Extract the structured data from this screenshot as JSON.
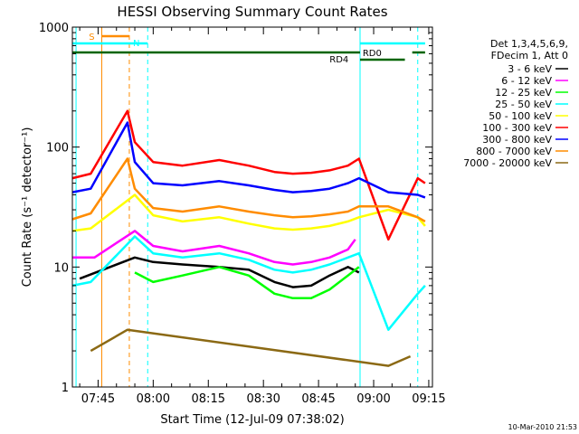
{
  "chart_data": {
    "type": "line",
    "title": "HESSI Observing Summary Count Rates",
    "xlabel": "Start Time (12-Jul-09 07:38:02)",
    "ylabel": "Count Rate (s⁻¹ detector⁻¹)",
    "ylim": [
      1,
      1000
    ],
    "yscale": "log",
    "xlim_minutes_after_0738": [
      0,
      98
    ],
    "x_ticks": [
      "07:45",
      "08:00",
      "08:15",
      "08:30",
      "08:45",
      "09:00",
      "09:15"
    ],
    "y_ticks": [
      "1",
      "10",
      "100",
      "1000"
    ],
    "legend_header": [
      "Det 1,3,4,5,6,9,",
      "FDecim 1, Att 0"
    ],
    "legend_position": "right",
    "timestamp": "10-Mar-2010 21:53",
    "flags": [
      {
        "label": "S",
        "color": "#ff8c00"
      },
      {
        "label": "N",
        "color": "#00ffff"
      },
      {
        "label": "RD0",
        "color": "#00ffff"
      },
      {
        "label": "RD4",
        "color": "#006400"
      }
    ],
    "series": [
      {
        "name": "3 - 6 keV",
        "color": "#000000",
        "points": [
          [
            2,
            8
          ],
          [
            17,
            12
          ],
          [
            22,
            11
          ],
          [
            30,
            10.5
          ],
          [
            40,
            10
          ],
          [
            48,
            9.5
          ],
          [
            55,
            7.5
          ],
          [
            60,
            6.8
          ],
          [
            65,
            7
          ],
          [
            70,
            8.5
          ],
          [
            75,
            10
          ],
          [
            78,
            9
          ]
        ]
      },
      {
        "name": "6 - 12 keV",
        "color": "#ff00ff",
        "points": [
          [
            0,
            12
          ],
          [
            6,
            12
          ],
          [
            17,
            20
          ],
          [
            22,
            15
          ],
          [
            30,
            13.5
          ],
          [
            40,
            15
          ],
          [
            48,
            13
          ],
          [
            55,
            11
          ],
          [
            60,
            10.5
          ],
          [
            65,
            11
          ],
          [
            70,
            12
          ],
          [
            75,
            14
          ],
          [
            77,
            17
          ]
        ]
      },
      {
        "name": "12 - 25 keV",
        "color": "#00ff00",
        "points": [
          [
            17,
            9
          ],
          [
            22,
            7.5
          ],
          [
            30,
            8.5
          ],
          [
            40,
            10
          ],
          [
            48,
            8.5
          ],
          [
            55,
            6
          ],
          [
            60,
            5.5
          ],
          [
            65,
            5.5
          ],
          [
            70,
            6.5
          ],
          [
            75,
            8.5
          ],
          [
            78,
            10
          ]
        ]
      },
      {
        "name": "25 - 50 keV",
        "color": "#00ffff",
        "points": [
          [
            0,
            7
          ],
          [
            5,
            7.5
          ],
          [
            17,
            18
          ],
          [
            22,
            13
          ],
          [
            30,
            12
          ],
          [
            40,
            13
          ],
          [
            48,
            11.5
          ],
          [
            55,
            9.5
          ],
          [
            60,
            9
          ],
          [
            65,
            9.5
          ],
          [
            70,
            10.5
          ],
          [
            75,
            12
          ],
          [
            78,
            13
          ],
          [
            86,
            3
          ],
          [
            94,
            6
          ],
          [
            96,
            7
          ]
        ]
      },
      {
        "name": "50 - 100 keV",
        "color": "#ffff00",
        "points": [
          [
            0,
            20
          ],
          [
            5,
            21
          ],
          [
            17,
            40
          ],
          [
            22,
            27
          ],
          [
            30,
            24
          ],
          [
            40,
            26
          ],
          [
            48,
            23
          ],
          [
            55,
            21
          ],
          [
            60,
            20.5
          ],
          [
            65,
            21
          ],
          [
            70,
            22
          ],
          [
            75,
            24
          ],
          [
            78,
            26
          ],
          [
            86,
            30
          ],
          [
            94,
            26
          ],
          [
            96,
            22
          ]
        ]
      },
      {
        "name": "100 - 300 keV",
        "color": "#ff0000",
        "points": [
          [
            0,
            55
          ],
          [
            5,
            60
          ],
          [
            15,
            200
          ],
          [
            17,
            110
          ],
          [
            22,
            75
          ],
          [
            30,
            70
          ],
          [
            40,
            78
          ],
          [
            48,
            70
          ],
          [
            55,
            62
          ],
          [
            60,
            60
          ],
          [
            65,
            61
          ],
          [
            70,
            64
          ],
          [
            75,
            70
          ],
          [
            78,
            80
          ],
          [
            86,
            17
          ],
          [
            94,
            55
          ],
          [
            96,
            50
          ]
        ]
      },
      {
        "name": "300 - 800 keV",
        "color": "#0000ff",
        "points": [
          [
            0,
            42
          ],
          [
            5,
            45
          ],
          [
            15,
            160
          ],
          [
            17,
            75
          ],
          [
            22,
            50
          ],
          [
            30,
            48
          ],
          [
            40,
            52
          ],
          [
            48,
            48
          ],
          [
            55,
            44
          ],
          [
            60,
            42
          ],
          [
            65,
            43
          ],
          [
            70,
            45
          ],
          [
            75,
            50
          ],
          [
            78,
            55
          ],
          [
            86,
            42
          ],
          [
            94,
            40
          ],
          [
            96,
            38
          ]
        ]
      },
      {
        "name": "800 - 7000 keV",
        "color": "#ff8c00",
        "points": [
          [
            0,
            25
          ],
          [
            5,
            28
          ],
          [
            15,
            80
          ],
          [
            17,
            45
          ],
          [
            22,
            31
          ],
          [
            30,
            29
          ],
          [
            40,
            32
          ],
          [
            48,
            29
          ],
          [
            55,
            27
          ],
          [
            60,
            26
          ],
          [
            65,
            26.5
          ],
          [
            70,
            27.5
          ],
          [
            75,
            29
          ],
          [
            78,
            32
          ],
          [
            86,
            32
          ],
          [
            94,
            26
          ],
          [
            96,
            24
          ]
        ]
      },
      {
        "name": "7000 - 20000 keV",
        "color": "#8b6914",
        "points": [
          [
            5,
            2
          ],
          [
            15,
            3
          ],
          [
            86,
            1.5
          ],
          [
            92,
            1.8
          ]
        ]
      }
    ]
  }
}
